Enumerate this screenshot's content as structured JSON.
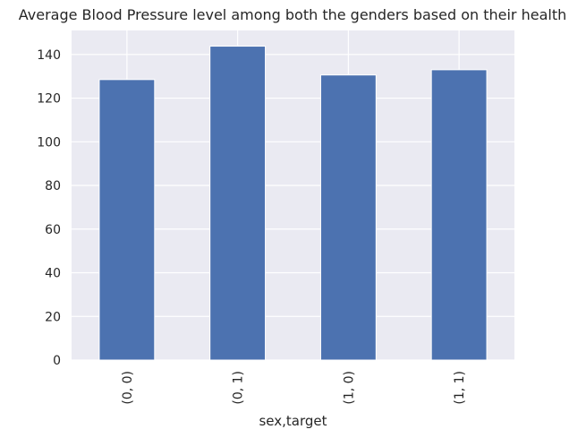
{
  "chart_data": {
    "type": "bar",
    "title": "Average Blood Pressure level among both the genders based on their health",
    "categories": [
      "(0, 0)",
      "(0, 1)",
      "(1, 0)",
      "(1, 1)"
    ],
    "values": [
      128.5,
      143.8,
      130.6,
      133.0
    ],
    "xlabel": "sex,target",
    "ylabel": "",
    "ylim": [
      0,
      151
    ],
    "yticks": [
      0,
      20,
      40,
      60,
      80,
      100,
      120,
      140
    ],
    "grid": true,
    "colors": {
      "bar": "#4c72b0",
      "background": "#eaeaf2",
      "grid": "#ffffff"
    }
  }
}
